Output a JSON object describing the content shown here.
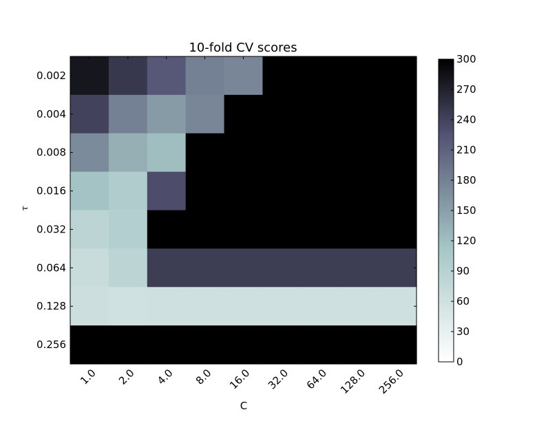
{
  "chart_data": {
    "type": "heatmap",
    "title": "10-fold CV scores",
    "xlabel": "C",
    "ylabel": "τ",
    "x_categories": [
      "1.0",
      "2.0",
      "4.0",
      "8.0",
      "16.0",
      "32.0",
      "64.0",
      "128.0",
      "256.0"
    ],
    "y_categories": [
      "0.002",
      "0.004",
      "0.008",
      "0.016",
      "0.032",
      "0.064",
      "0.128",
      "0.256"
    ],
    "values": [
      [
        280,
        250,
        220,
        180,
        175,
        300,
        300,
        300,
        300
      ],
      [
        240,
        180,
        155,
        175,
        300,
        300,
        300,
        300,
        300
      ],
      [
        170,
        135,
        120,
        300,
        300,
        300,
        300,
        300,
        300
      ],
      [
        115,
        100,
        230,
        300,
        300,
        300,
        300,
        300,
        300
      ],
      [
        85,
        95,
        300,
        300,
        300,
        300,
        300,
        300,
        300
      ],
      [
        70,
        85,
        245,
        245,
        245,
        245,
        245,
        245,
        245
      ],
      [
        65,
        60,
        62,
        62,
        62,
        62,
        62,
        62,
        62
      ],
      [
        300,
        300,
        300,
        300,
        300,
        300,
        300,
        300,
        300
      ]
    ],
    "colorbar": {
      "min": 0,
      "max": 300,
      "ticks": [
        "0",
        "30",
        "60",
        "90",
        "120",
        "150",
        "180",
        "210",
        "240",
        "270",
        "300"
      ]
    },
    "colormap": "bone_r",
    "grid": false
  }
}
